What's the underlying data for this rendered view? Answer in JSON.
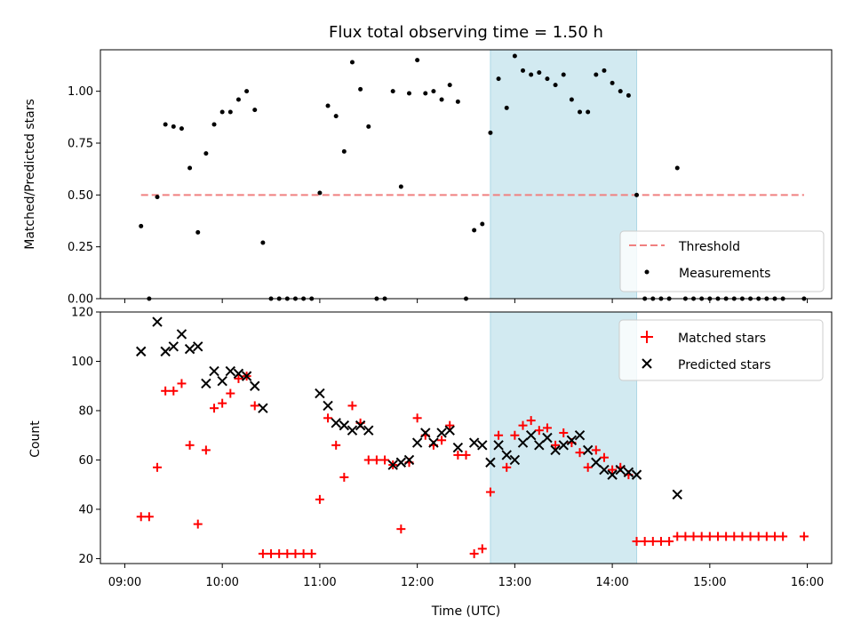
{
  "chart_data": [
    {
      "type": "scatter",
      "title": "Flux total observing time = 1.50 h",
      "xlabel": "",
      "ylabel": "Matched/Predicted stars",
      "xlim": [
        "09:00",
        "16:00"
      ],
      "ylim": [
        0.0,
        1.2
      ],
      "x_ticks": [
        "09:00",
        "10:00",
        "11:00",
        "12:00",
        "13:00",
        "14:00",
        "15:00",
        "16:00"
      ],
      "y_ticks": [
        "0.00",
        "0.25",
        "0.50",
        "0.75",
        "1.00"
      ],
      "highlight_span": {
        "from": "12:45",
        "to": "14:15",
        "color": "#add8e6"
      },
      "legend_position": "lower-right",
      "threshold": {
        "name": "Threshold",
        "value": 0.5,
        "from": "09:10",
        "to": "15:58",
        "color": "#f08080",
        "style": "dashed"
      },
      "series": [
        {
          "name": "Measurements",
          "color": "#000000",
          "marker": "dot",
          "points": [
            [
              "09:10",
              0.35
            ],
            [
              "09:15",
              0.0
            ],
            [
              "09:20",
              0.49
            ],
            [
              "09:25",
              0.84
            ],
            [
              "09:30",
              0.83
            ],
            [
              "09:35",
              0.82
            ],
            [
              "09:40",
              0.63
            ],
            [
              "09:45",
              0.32
            ],
            [
              "09:50",
              0.7
            ],
            [
              "09:55",
              0.84
            ],
            [
              "10:00",
              0.9
            ],
            [
              "10:05",
              0.9
            ],
            [
              "10:10",
              0.96
            ],
            [
              "10:15",
              1.0
            ],
            [
              "10:20",
              0.91
            ],
            [
              "10:25",
              0.27
            ],
            [
              "10:30",
              0.0
            ],
            [
              "10:35",
              0.0
            ],
            [
              "10:40",
              0.0
            ],
            [
              "10:45",
              0.0
            ],
            [
              "10:50",
              0.0
            ],
            [
              "10:55",
              0.0
            ],
            [
              "11:00",
              0.51
            ],
            [
              "11:05",
              0.93
            ],
            [
              "11:10",
              0.88
            ],
            [
              "11:15",
              0.71
            ],
            [
              "11:20",
              1.14
            ],
            [
              "11:25",
              1.01
            ],
            [
              "11:30",
              0.83
            ],
            [
              "11:35",
              0.0
            ],
            [
              "11:40",
              0.0
            ],
            [
              "11:45",
              1.0
            ],
            [
              "11:50",
              0.54
            ],
            [
              "11:55",
              0.99
            ],
            [
              "12:00",
              1.15
            ],
            [
              "12:05",
              0.99
            ],
            [
              "12:10",
              1.0
            ],
            [
              "12:15",
              0.96
            ],
            [
              "12:20",
              1.03
            ],
            [
              "12:25",
              0.95
            ],
            [
              "12:30",
              0.0
            ],
            [
              "12:35",
              0.33
            ],
            [
              "12:40",
              0.36
            ],
            [
              "12:45",
              0.8
            ],
            [
              "12:50",
              1.06
            ],
            [
              "12:55",
              0.92
            ],
            [
              "13:00",
              1.17
            ],
            [
              "13:05",
              1.1
            ],
            [
              "13:10",
              1.08
            ],
            [
              "13:15",
              1.09
            ],
            [
              "13:20",
              1.06
            ],
            [
              "13:25",
              1.03
            ],
            [
              "13:30",
              1.08
            ],
            [
              "13:35",
              0.96
            ],
            [
              "13:40",
              0.9
            ],
            [
              "13:45",
              0.9
            ],
            [
              "13:50",
              1.08
            ],
            [
              "13:55",
              1.1
            ],
            [
              "14:00",
              1.04
            ],
            [
              "14:05",
              1.0
            ],
            [
              "14:10",
              0.98
            ],
            [
              "14:15",
              0.5
            ],
            [
              "14:20",
              0.0
            ],
            [
              "14:25",
              0.0
            ],
            [
              "14:30",
              0.0
            ],
            [
              "14:35",
              0.0
            ],
            [
              "14:40",
              0.63
            ],
            [
              "14:45",
              0.0
            ],
            [
              "14:50",
              0.0
            ],
            [
              "14:55",
              0.0
            ],
            [
              "15:00",
              0.0
            ],
            [
              "15:05",
              0.0
            ],
            [
              "15:10",
              0.0
            ],
            [
              "15:15",
              0.0
            ],
            [
              "15:20",
              0.0
            ],
            [
              "15:25",
              0.0
            ],
            [
              "15:30",
              0.0
            ],
            [
              "15:35",
              0.0
            ],
            [
              "15:40",
              0.0
            ],
            [
              "15:45",
              0.0
            ],
            [
              "15:58",
              0.0
            ]
          ]
        }
      ]
    },
    {
      "type": "scatter",
      "title": "",
      "xlabel": "Time (UTC)",
      "ylabel": "Count",
      "xlim": [
        "09:00",
        "16:00"
      ],
      "ylim": [
        18,
        120
      ],
      "x_ticks": [
        "09:00",
        "10:00",
        "11:00",
        "12:00",
        "13:00",
        "14:00",
        "15:00",
        "16:00"
      ],
      "y_ticks": [
        "20",
        "40",
        "60",
        "80",
        "100",
        "120"
      ],
      "highlight_span": {
        "from": "12:45",
        "to": "14:15",
        "color": "#add8e6"
      },
      "legend_position": "top-right",
      "series": [
        {
          "name": "Matched stars",
          "color": "#ff0000",
          "marker": "plus",
          "points": [
            [
              "09:10",
              37
            ],
            [
              "09:15",
              37
            ],
            [
              "09:20",
              57
            ],
            [
              "09:25",
              88
            ],
            [
              "09:30",
              88
            ],
            [
              "09:35",
              91
            ],
            [
              "09:40",
              66
            ],
            [
              "09:45",
              34
            ],
            [
              "09:50",
              64
            ],
            [
              "09:55",
              81
            ],
            [
              "10:00",
              83
            ],
            [
              "10:05",
              87
            ],
            [
              "10:10",
              93
            ],
            [
              "10:15",
              94
            ],
            [
              "10:20",
              82
            ],
            [
              "10:25",
              22
            ],
            [
              "10:30",
              22
            ],
            [
              "10:35",
              22
            ],
            [
              "10:40",
              22
            ],
            [
              "10:45",
              22
            ],
            [
              "10:50",
              22
            ],
            [
              "10:55",
              22
            ],
            [
              "11:00",
              44
            ],
            [
              "11:05",
              77
            ],
            [
              "11:10",
              66
            ],
            [
              "11:15",
              53
            ],
            [
              "11:20",
              82
            ],
            [
              "11:25",
              75
            ],
            [
              "11:30",
              60
            ],
            [
              "11:35",
              60
            ],
            [
              "11:40",
              60
            ],
            [
              "11:45",
              58
            ],
            [
              "11:50",
              32
            ],
            [
              "11:55",
              59
            ],
            [
              "12:00",
              77
            ],
            [
              "12:05",
              70
            ],
            [
              "12:10",
              66
            ],
            [
              "12:15",
              68
            ],
            [
              "12:20",
              74
            ],
            [
              "12:25",
              62
            ],
            [
              "12:30",
              62
            ],
            [
              "12:35",
              22
            ],
            [
              "12:40",
              24
            ],
            [
              "12:45",
              47
            ],
            [
              "12:50",
              70
            ],
            [
              "12:55",
              57
            ],
            [
              "13:00",
              70
            ],
            [
              "13:05",
              74
            ],
            [
              "13:10",
              76
            ],
            [
              "13:15",
              72
            ],
            [
              "13:20",
              73
            ],
            [
              "13:25",
              66
            ],
            [
              "13:30",
              71
            ],
            [
              "13:35",
              67
            ],
            [
              "13:40",
              63
            ],
            [
              "13:45",
              57
            ],
            [
              "13:50",
              64
            ],
            [
              "13:55",
              61
            ],
            [
              "14:00",
              56
            ],
            [
              "14:05",
              57
            ],
            [
              "14:10",
              54
            ],
            [
              "14:15",
              27
            ],
            [
              "14:20",
              27
            ],
            [
              "14:25",
              27
            ],
            [
              "14:30",
              27
            ],
            [
              "14:35",
              27
            ],
            [
              "14:40",
              29
            ],
            [
              "14:45",
              29
            ],
            [
              "14:50",
              29
            ],
            [
              "14:55",
              29
            ],
            [
              "15:00",
              29
            ],
            [
              "15:05",
              29
            ],
            [
              "15:10",
              29
            ],
            [
              "15:15",
              29
            ],
            [
              "15:20",
              29
            ],
            [
              "15:25",
              29
            ],
            [
              "15:30",
              29
            ],
            [
              "15:35",
              29
            ],
            [
              "15:40",
              29
            ],
            [
              "15:45",
              29
            ],
            [
              "15:58",
              29
            ]
          ]
        },
        {
          "name": "Predicted stars",
          "color": "#000000",
          "marker": "cross",
          "points": [
            [
              "09:10",
              104
            ],
            [
              "09:20",
              116
            ],
            [
              "09:25",
              104
            ],
            [
              "09:30",
              106
            ],
            [
              "09:35",
              111
            ],
            [
              "09:40",
              105
            ],
            [
              "09:45",
              106
            ],
            [
              "09:50",
              91
            ],
            [
              "09:55",
              96
            ],
            [
              "10:00",
              92
            ],
            [
              "10:05",
              96
            ],
            [
              "10:10",
              95
            ],
            [
              "10:15",
              94
            ],
            [
              "10:20",
              90
            ],
            [
              "10:25",
              81
            ],
            [
              "11:00",
              87
            ],
            [
              "11:05",
              82
            ],
            [
              "11:10",
              75
            ],
            [
              "11:15",
              74
            ],
            [
              "11:20",
              72
            ],
            [
              "11:25",
              74
            ],
            [
              "11:30",
              72
            ],
            [
              "11:45",
              58
            ],
            [
              "11:50",
              59
            ],
            [
              "11:55",
              60
            ],
            [
              "12:00",
              67
            ],
            [
              "12:05",
              71
            ],
            [
              "12:10",
              67
            ],
            [
              "12:15",
              71
            ],
            [
              "12:20",
              72
            ],
            [
              "12:25",
              65
            ],
            [
              "12:35",
              67
            ],
            [
              "12:40",
              66
            ],
            [
              "12:45",
              59
            ],
            [
              "12:50",
              66
            ],
            [
              "12:55",
              62
            ],
            [
              "13:00",
              60
            ],
            [
              "13:05",
              67
            ],
            [
              "13:10",
              70
            ],
            [
              "13:15",
              66
            ],
            [
              "13:20",
              69
            ],
            [
              "13:25",
              64
            ],
            [
              "13:30",
              66
            ],
            [
              "13:35",
              68
            ],
            [
              "13:40",
              70
            ],
            [
              "13:45",
              64
            ],
            [
              "13:50",
              59
            ],
            [
              "13:55",
              56
            ],
            [
              "14:00",
              54
            ],
            [
              "14:05",
              56
            ],
            [
              "14:10",
              55
            ],
            [
              "14:15",
              54
            ],
            [
              "14:40",
              46
            ]
          ]
        }
      ]
    }
  ]
}
